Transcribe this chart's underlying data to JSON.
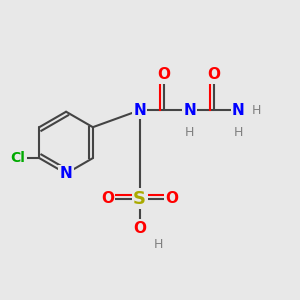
{
  "background_color": "#e8e8e8",
  "figsize": [
    3.0,
    3.0
  ],
  "dpi": 100,
  "atom_colors": {
    "C": "#444444",
    "N": "#0000ff",
    "O": "#ff0000",
    "S": "#aaaa00",
    "Cl": "#00aa00",
    "H": "#808080"
  },
  "bond_color": "#444444",
  "double_bond_color_O": "#ff0000"
}
